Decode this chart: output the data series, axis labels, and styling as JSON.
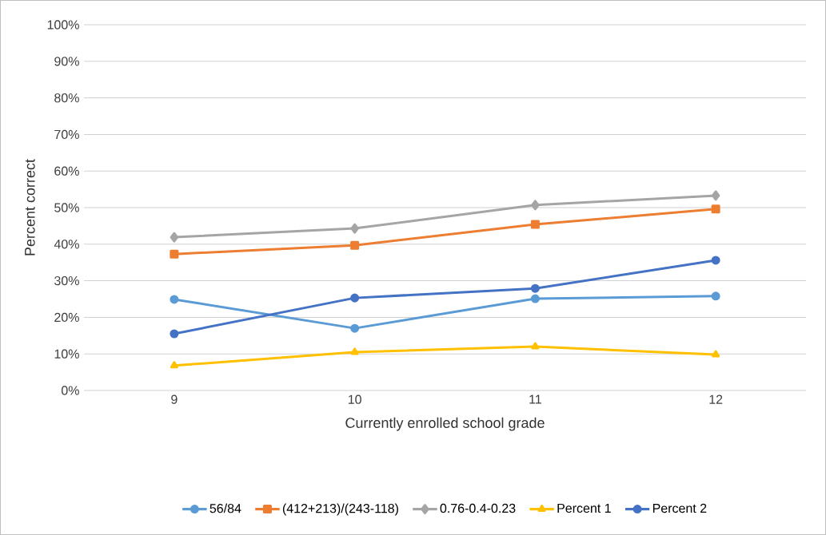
{
  "chart_data": {
    "type": "line",
    "xlabel": "Currently enrolled school grade",
    "ylabel": "Percent correct",
    "categories": [
      "9",
      "10",
      "11",
      "12"
    ],
    "series": [
      {
        "name": "56/84",
        "color": "#5b9bd5",
        "marker": "circle",
        "values": [
          24.9,
          17.0,
          25.1,
          25.8
        ]
      },
      {
        "name": "(412+213)/(243-118)",
        "color": "#ed7d31",
        "marker": "square",
        "values": [
          37.3,
          39.7,
          45.4,
          49.6
        ]
      },
      {
        "name": "0.76-0.4-0.23",
        "color": "#a5a5a5",
        "marker": "diamond",
        "values": [
          41.9,
          44.3,
          50.7,
          53.3
        ]
      },
      {
        "name": "Percent 1",
        "color": "#ffc000",
        "marker": "triangle",
        "values": [
          6.8,
          10.5,
          12.0,
          9.8
        ]
      },
      {
        "name": "Percent 2",
        "color": "#4472c4",
        "marker": "circle",
        "values": [
          15.5,
          25.3,
          27.9,
          35.6
        ]
      }
    ],
    "ylim": [
      0,
      100
    ],
    "yticks": [
      {
        "value": 0,
        "label": "0%"
      },
      {
        "value": 10,
        "label": "10%"
      },
      {
        "value": 20,
        "label": "20%"
      },
      {
        "value": 30,
        "label": "30%"
      },
      {
        "value": 40,
        "label": "40%"
      },
      {
        "value": 50,
        "label": "50%"
      },
      {
        "value": 60,
        "label": "60%"
      },
      {
        "value": 70,
        "label": "70%"
      },
      {
        "value": 80,
        "label": "80%"
      },
      {
        "value": 90,
        "label": "90%"
      },
      {
        "value": 100,
        "label": "100%"
      }
    ],
    "grid": "y",
    "legend": "bottom",
    "line_style": "solid"
  }
}
